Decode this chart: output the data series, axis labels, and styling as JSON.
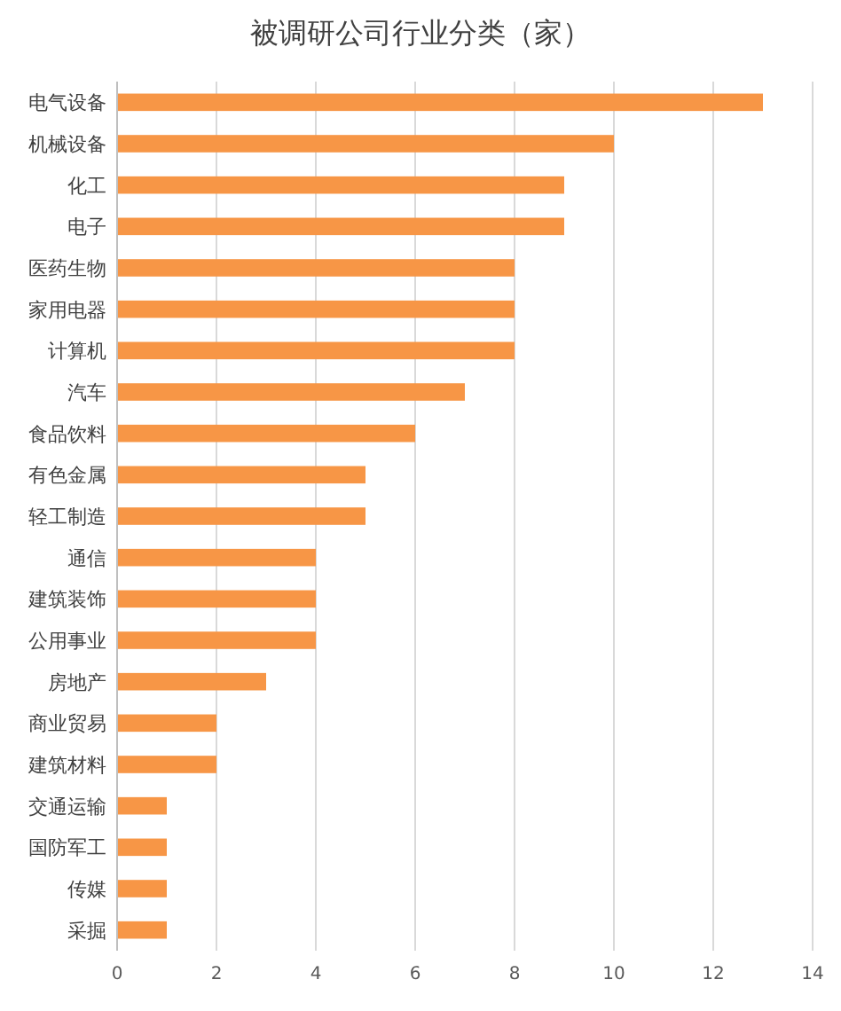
{
  "chart_data": {
    "type": "bar",
    "title": "被调研公司行业分类（家）",
    "orientation": "horizontal",
    "categories": [
      "电气设备",
      "机械设备",
      "化工",
      "电子",
      "医药生物",
      "家用电器",
      "计算机",
      "汽车",
      "食品饮料",
      "有色金属",
      "轻工制造",
      "通信",
      "建筑装饰",
      "公用事业",
      "房地产",
      "商业贸易",
      "建筑材料",
      "交通运输",
      "国防军工",
      "传媒",
      "采掘"
    ],
    "values": [
      13,
      10,
      9,
      9,
      8,
      8,
      8,
      7,
      6,
      5,
      5,
      4,
      4,
      4,
      3,
      2,
      2,
      1,
      1,
      1,
      1
    ],
    "color": "#f79646",
    "xlim": [
      0,
      14
    ],
    "xticks": [
      0,
      2,
      4,
      6,
      8,
      10,
      12,
      14
    ],
    "grid": "x"
  }
}
